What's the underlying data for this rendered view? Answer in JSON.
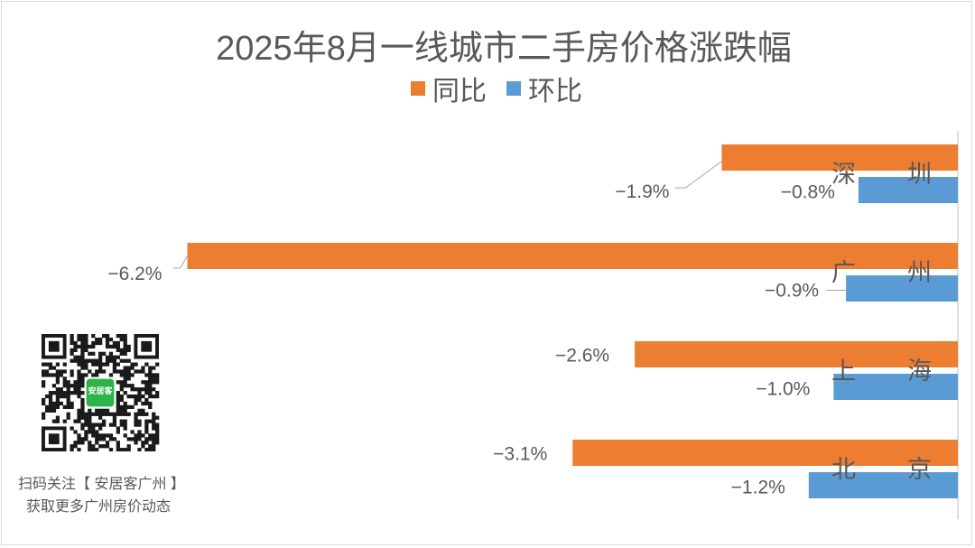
{
  "chart_data": {
    "type": "bar",
    "orientation": "horizontal",
    "title": "2025年8月一线城市二手房价格涨跌幅",
    "categories": [
      "深　　圳",
      "广　　州",
      "上　　海",
      "北　　京"
    ],
    "series": [
      {
        "name": "同比",
        "color": "#ed7d31",
        "values": [
          -1.9,
          -6.2,
          -2.6,
          -3.1
        ]
      },
      {
        "name": "环比",
        "color": "#5b9bd5",
        "values": [
          -0.8,
          -0.9,
          -1.0,
          -1.2
        ]
      }
    ],
    "data_labels": [
      [
        "−1.9%",
        "−6.2%",
        "−2.6%",
        "−3.1%"
      ],
      [
        "−0.8%",
        "−0.9%",
        "−1.0%",
        "−1.2%"
      ]
    ],
    "xlim": [
      -6.4,
      0
    ],
    "legend_position": "top-center",
    "grid": false
  },
  "promo": {
    "qr_center_label": "安居客",
    "caption_line1": "扫码关注【 安居客广州 】",
    "caption_line2": "获取更多广州房价动态"
  }
}
